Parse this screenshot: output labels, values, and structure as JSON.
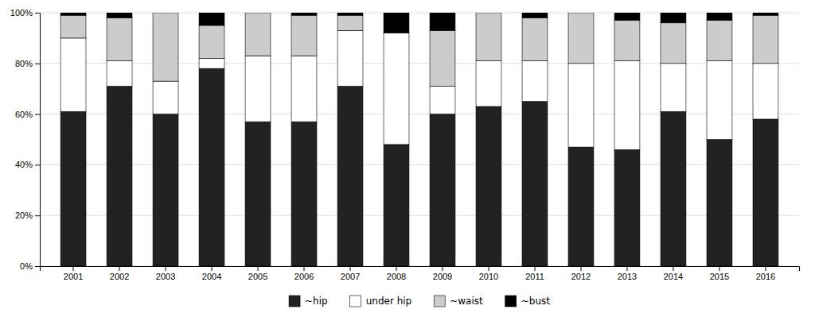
{
  "chart_data": {
    "type": "bar",
    "stacked": true,
    "grid": true,
    "legend": "bottom",
    "categories": [
      "2001",
      "2002",
      "2003",
      "2004",
      "2005",
      "2006",
      "2007",
      "2008",
      "2009",
      "2010",
      "2011",
      "2012",
      "2013",
      "2014",
      "2015",
      "2016"
    ],
    "series": [
      {
        "name": "~hip",
        "color": "#222222",
        "values": [
          61,
          71,
          60,
          78,
          57,
          57,
          71,
          48,
          60,
          63,
          65,
          47,
          46,
          61,
          50,
          58
        ]
      },
      {
        "name": "under hip",
        "color": "#ffffff",
        "values": [
          29,
          10,
          13,
          4,
          26,
          26,
          22,
          44,
          11,
          18,
          16,
          33,
          35,
          19,
          31,
          22
        ]
      },
      {
        "name": "~waist",
        "color": "#cccccc",
        "values": [
          9,
          17,
          27,
          13,
          17,
          16,
          6,
          0,
          22,
          19,
          17,
          20,
          16,
          16,
          16,
          19
        ]
      },
      {
        "name": "~bust",
        "color": "#000000",
        "values": [
          1,
          2,
          0,
          5,
          0,
          1,
          1,
          8,
          7,
          0,
          2,
          0,
          3,
          4,
          3,
          1
        ]
      }
    ],
    "ylim": [
      0,
      100
    ],
    "yticks": [
      {
        "value": 0,
        "label": "0%"
      },
      {
        "value": 20,
        "label": "20%"
      },
      {
        "value": 40,
        "label": "40%"
      },
      {
        "value": 60,
        "label": "60%"
      },
      {
        "value": 80,
        "label": "80%"
      },
      {
        "value": 100,
        "label": "100%"
      }
    ]
  }
}
